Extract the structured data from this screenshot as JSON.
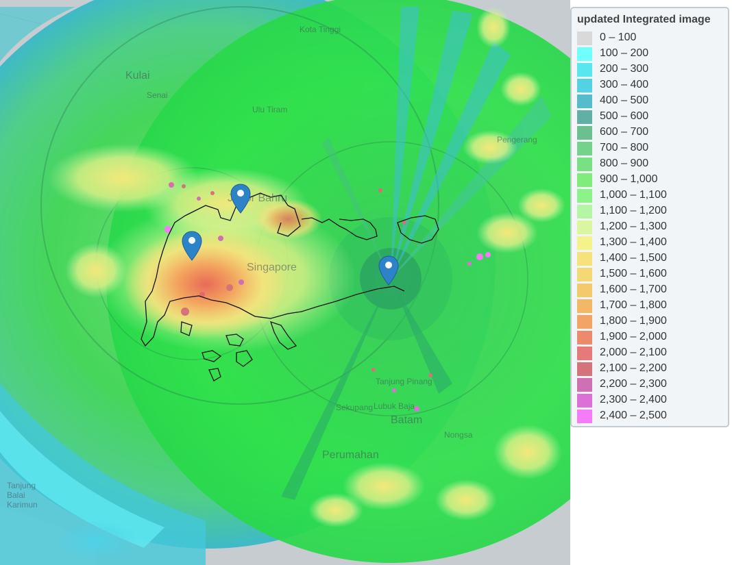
{
  "map": {
    "place_labels": [
      {
        "name": "Kota Tinggi"
      },
      {
        "name": "Kulai"
      },
      {
        "name": "Senai"
      },
      {
        "name": "Ulu Tiram"
      },
      {
        "name": "Johor Bahru"
      },
      {
        "name": "Pengerang"
      },
      {
        "name": "Singapore"
      },
      {
        "name": "Tanjung Pinang"
      },
      {
        "name": "Batam"
      },
      {
        "name": "Sekupang"
      },
      {
        "name": "Lubuk Baja"
      },
      {
        "name": "Nongsa"
      },
      {
        "name": "Perumahan"
      },
      {
        "name": "Tanjung Balai Karimun"
      }
    ],
    "markers": [
      {
        "name": "radar-marker-west"
      },
      {
        "name": "radar-marker-north"
      },
      {
        "name": "radar-marker-east"
      }
    ]
  },
  "legend": {
    "title": "updated Integrated image",
    "items": [
      {
        "label": "0 – 100",
        "color": "#d9d9d9"
      },
      {
        "label": "100 – 200",
        "color": "#70ffff"
      },
      {
        "label": "200 – 300",
        "color": "#5ae6ee"
      },
      {
        "label": "300 – 400",
        "color": "#52d2e2"
      },
      {
        "label": "400 – 500",
        "color": "#56bccb"
      },
      {
        "label": "500 – 600",
        "color": "#60b0a5"
      },
      {
        "label": "600 – 700",
        "color": "#6cbf8e"
      },
      {
        "label": "700 – 800",
        "color": "#74d28c"
      },
      {
        "label": "800 – 900",
        "color": "#79e084"
      },
      {
        "label": "900 – 1,000",
        "color": "#80ec7c"
      },
      {
        "label": "1,000 – 1,100",
        "color": "#8ef28a"
      },
      {
        "label": "1,100 – 1,200",
        "color": "#b6f5a4"
      },
      {
        "label": "1,200 – 1,300",
        "color": "#dcf6a0"
      },
      {
        "label": "1,300 – 1,400",
        "color": "#f4f28a"
      },
      {
        "label": "1,400 – 1,500",
        "color": "#f5e27c"
      },
      {
        "label": "1,500 – 1,600",
        "color": "#f4d874"
      },
      {
        "label": "1,600 – 1,700",
        "color": "#f4c86c"
      },
      {
        "label": "1,700 – 1,800",
        "color": "#f3b866"
      },
      {
        "label": "1,800 – 1,900",
        "color": "#f2a466"
      },
      {
        "label": "1,900 – 2,000",
        "color": "#ee8a6c"
      },
      {
        "label": "2,000 – 2,100",
        "color": "#e67a78"
      },
      {
        "label": "2,100 – 2,200",
        "color": "#d2747a"
      },
      {
        "label": "2,200 – 2,300",
        "color": "#cf6fb4"
      },
      {
        "label": "2,300 – 2,400",
        "color": "#dc6fd8"
      },
      {
        "label": "2,400 – 2,500",
        "color": "#f47cf8"
      }
    ]
  }
}
